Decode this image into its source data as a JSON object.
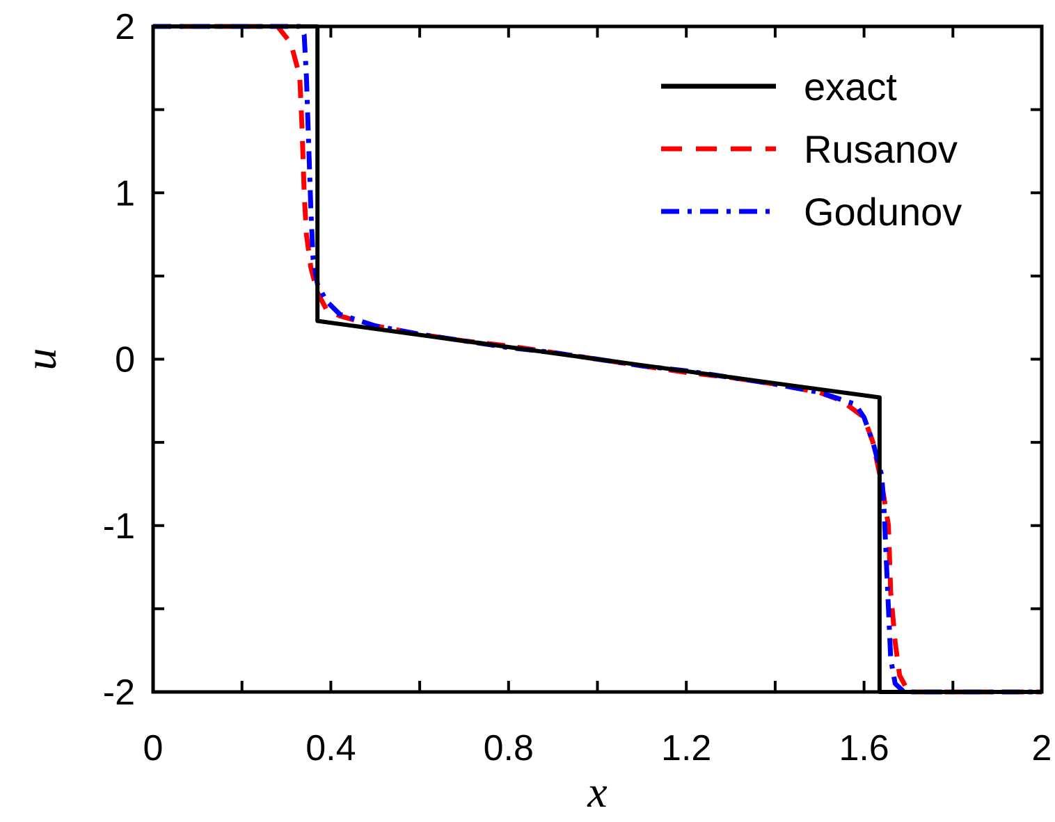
{
  "chart_data": {
    "type": "line",
    "xlabel": "x",
    "ylabel": "u",
    "xlim": [
      0,
      2
    ],
    "ylim": [
      -2,
      2
    ],
    "x_ticks": [
      0,
      0.4,
      0.8,
      1.2,
      1.6,
      2
    ],
    "x_tick_labels": [
      "0",
      "0.4",
      "0.8",
      "1.2",
      "1.6",
      "2"
    ],
    "y_ticks": [
      2,
      1,
      0,
      -1,
      -2
    ],
    "y_tick_labels": [
      "2",
      "1",
      "0",
      "-1",
      "-2"
    ],
    "grid": false,
    "legend_position": "top-right",
    "series": [
      {
        "name": "exact",
        "color": "#000000",
        "dash": "solid",
        "x": [
          0,
          0.37,
          0.37,
          1.0,
          1.635,
          1.635,
          2.0
        ],
        "y": [
          2,
          2,
          0.23,
          0.0,
          -0.23,
          -2,
          -2
        ]
      },
      {
        "name": "Rusanov",
        "color": "#ff0000",
        "dash": "dashed",
        "x": [
          0.0,
          0.28,
          0.31,
          0.33,
          0.335,
          0.34,
          0.345,
          0.355,
          0.37,
          0.39,
          0.42,
          0.5,
          0.6,
          0.7,
          0.8,
          0.9,
          1.0,
          1.1,
          1.2,
          1.3,
          1.4,
          1.5,
          1.55,
          1.6,
          1.62,
          1.64,
          1.655,
          1.66,
          1.67,
          1.68,
          1.7,
          1.73,
          1.8,
          2.0
        ],
        "y": [
          2.0,
          2.0,
          1.9,
          1.7,
          1.4,
          1.0,
          0.75,
          0.55,
          0.4,
          0.3,
          0.26,
          0.2,
          0.15,
          0.11,
          0.08,
          0.04,
          0.0,
          -0.04,
          -0.08,
          -0.11,
          -0.15,
          -0.2,
          -0.25,
          -0.35,
          -0.5,
          -0.75,
          -1.0,
          -1.4,
          -1.7,
          -1.9,
          -2.0,
          -2.0,
          -2.0,
          -2.0
        ],
        "hidden_points": 0
      },
      {
        "name": "Godunov",
        "color": "#0000ff",
        "dash": "dashdot",
        "x": [
          0.0,
          0.33,
          0.34,
          0.345,
          0.35,
          0.355,
          0.36,
          0.37,
          0.39,
          0.42,
          0.5,
          0.6,
          0.7,
          0.8,
          0.9,
          1.0,
          1.1,
          1.2,
          1.3,
          1.4,
          1.5,
          1.58,
          1.6,
          1.62,
          1.64,
          1.645,
          1.65,
          1.655,
          1.66,
          1.67,
          1.69,
          1.8,
          2.0
        ],
        "y": [
          2.0,
          2.0,
          1.95,
          1.7,
          1.3,
          0.9,
          0.6,
          0.45,
          0.35,
          0.27,
          0.2,
          0.15,
          0.11,
          0.07,
          0.04,
          0.0,
          -0.04,
          -0.07,
          -0.11,
          -0.15,
          -0.2,
          -0.27,
          -0.35,
          -0.5,
          -0.7,
          -0.9,
          -1.2,
          -1.5,
          -1.8,
          -1.95,
          -2.0,
          -2.0,
          -2.0
        ]
      }
    ]
  }
}
